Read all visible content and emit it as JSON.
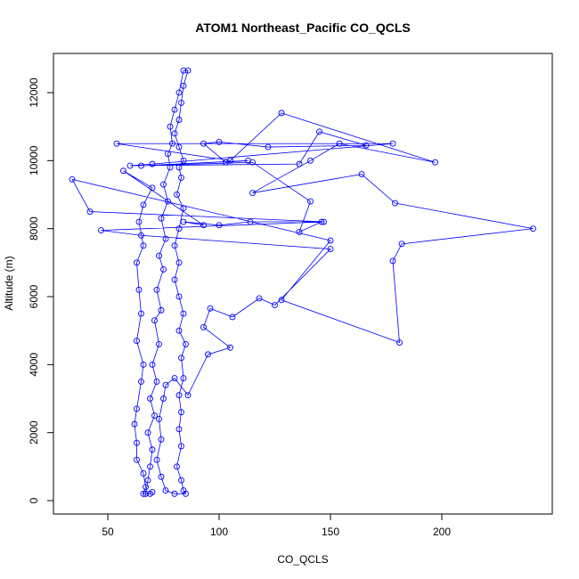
{
  "chart_data": {
    "type": "line",
    "title": "ATOM1 Northeast_Pacific CO_QCLS",
    "x_label": "CO_QCLS",
    "y_label": "Altitude (m)",
    "color": "#0000ff",
    "marker": "circle",
    "x": [
      67,
      68,
      69,
      70,
      68,
      71,
      69,
      72,
      70,
      73,
      71,
      74,
      72,
      75,
      73,
      76,
      74,
      77,
      75,
      78,
      77,
      79,
      78,
      80,
      82,
      84,
      86,
      84,
      83,
      82,
      80,
      82,
      84,
      82,
      83,
      81,
      84,
      82,
      80,
      82,
      80,
      82,
      84,
      82,
      85,
      83,
      84,
      82,
      83,
      82,
      83,
      81,
      83,
      84,
      85,
      80,
      76,
      74,
      72,
      74,
      73,
      75,
      76,
      80,
      86,
      95,
      105,
      93,
      96,
      106,
      118,
      125,
      150,
      65,
      47,
      147,
      42,
      34,
      150,
      128,
      181,
      178,
      182,
      241,
      179,
      164,
      115,
      141,
      154,
      197,
      128,
      105,
      54,
      178,
      70,
      60,
      136,
      145,
      166,
      122,
      100,
      93,
      103,
      113,
      65,
      115,
      141,
      136,
      146,
      114,
      100,
      84,
      93,
      57,
      70,
      66,
      64,
      66,
      63,
      64,
      65,
      63,
      66,
      65,
      63,
      62,
      63,
      63,
      66,
      67,
      66,
      69,
      70
    ],
    "values": [
      200,
      600,
      1000,
      1500,
      2000,
      2500,
      3000,
      3500,
      4000,
      4600,
      5300,
      5600,
      6200,
      6800,
      7200,
      7700,
      8300,
      8800,
      9300,
      9800,
      10200,
      10500,
      11000,
      11500,
      12000,
      12650,
      12650,
      12200,
      11700,
      11200,
      10800,
      10400,
      10000,
      9800,
      9500,
      9000,
      8600,
      8000,
      7500,
      7000,
      6500,
      6000,
      5500,
      5000,
      4600,
      4200,
      3600,
      3100,
      2600,
      2100,
      1600,
      1000,
      600,
      300,
      200,
      200,
      300,
      700,
      1200,
      1800,
      2400,
      3000,
      3400,
      3600,
      3100,
      4300,
      4500,
      5100,
      5650,
      5400,
      5950,
      5750,
      7400,
      7800,
      7950,
      8200,
      8500,
      9450,
      7650,
      5900,
      4650,
      7050,
      7550,
      8000,
      8750,
      9600,
      9050,
      10000,
      10500,
      9950,
      11400,
      10000,
      10500,
      10500,
      9900,
      9850,
      9900,
      10850,
      10450,
      10400,
      10550,
      10500,
      9950,
      10000,
      9850,
      9950,
      8800,
      7900,
      8200,
      8200,
      8100,
      8200,
      8100,
      9700,
      9200,
      8700,
      8200,
      7500,
      7000,
      6200,
      5500,
      4700,
      4000,
      3500,
      2700,
      2250,
      1700,
      1200,
      800,
      400,
      200,
      200,
      250
    ],
    "xlim": [
      25.6,
      249.6
    ],
    "ylim": [
      -393,
      13152
    ],
    "xticks": [
      50,
      100,
      150,
      200
    ],
    "yticks": [
      0,
      2000,
      4000,
      6000,
      8000,
      10000,
      12000
    ]
  }
}
